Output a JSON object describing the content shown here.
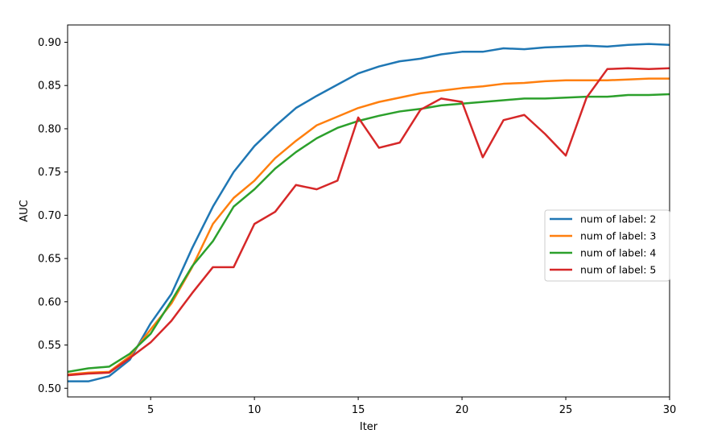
{
  "chart_data": {
    "type": "line",
    "title": "",
    "xlabel": "Iter",
    "ylabel": "AUC",
    "xlim": [
      1,
      30
    ],
    "ylim": [
      0.49,
      0.92
    ],
    "xticks": [
      5,
      10,
      15,
      20,
      25,
      30
    ],
    "yticks": [
      0.5,
      0.55,
      0.6,
      0.65,
      0.7,
      0.75,
      0.8,
      0.85,
      0.9
    ],
    "grid": false,
    "legend_position": "center-right",
    "x": [
      1,
      2,
      3,
      4,
      5,
      6,
      7,
      8,
      9,
      10,
      11,
      12,
      13,
      14,
      15,
      16,
      17,
      18,
      19,
      20,
      21,
      22,
      23,
      24,
      25,
      26,
      27,
      28,
      29,
      30
    ],
    "series": [
      {
        "name": "num of label: 2",
        "color": "#1f77b4",
        "values": [
          0.508,
          0.508,
          0.514,
          0.533,
          0.575,
          0.609,
          0.662,
          0.71,
          0.75,
          0.78,
          0.803,
          0.824,
          0.838,
          0.851,
          0.864,
          0.872,
          0.878,
          0.881,
          0.886,
          0.889,
          0.889,
          0.893,
          0.892,
          0.894,
          0.895,
          0.896,
          0.895,
          0.897,
          0.898,
          0.897
        ]
      },
      {
        "name": "num of label: 3",
        "color": "#ff7f0e",
        "values": [
          0.516,
          0.518,
          0.519,
          0.537,
          0.568,
          0.598,
          0.64,
          0.69,
          0.72,
          0.74,
          0.766,
          0.786,
          0.804,
          0.814,
          0.824,
          0.831,
          0.836,
          0.841,
          0.844,
          0.847,
          0.849,
          0.852,
          0.853,
          0.855,
          0.856,
          0.856,
          0.856,
          0.857,
          0.858,
          0.858
        ]
      },
      {
        "name": "num of label: 4",
        "color": "#2ca02c",
        "values": [
          0.519,
          0.523,
          0.525,
          0.54,
          0.563,
          0.601,
          0.641,
          0.67,
          0.71,
          0.73,
          0.754,
          0.773,
          0.789,
          0.801,
          0.809,
          0.815,
          0.82,
          0.823,
          0.827,
          0.829,
          0.831,
          0.833,
          0.835,
          0.835,
          0.836,
          0.837,
          0.837,
          0.839,
          0.839,
          0.84
        ]
      },
      {
        "name": "num of label: 5",
        "color": "#d62728",
        "values": [
          0.515,
          0.517,
          0.518,
          0.535,
          0.553,
          0.578,
          0.61,
          0.64,
          0.64,
          0.69,
          0.704,
          0.735,
          0.73,
          0.74,
          0.813,
          0.778,
          0.784,
          0.822,
          0.835,
          0.831,
          0.767,
          0.81,
          0.816,
          0.794,
          0.769,
          0.836,
          0.869,
          0.87,
          0.869,
          0.87
        ]
      }
    ]
  }
}
